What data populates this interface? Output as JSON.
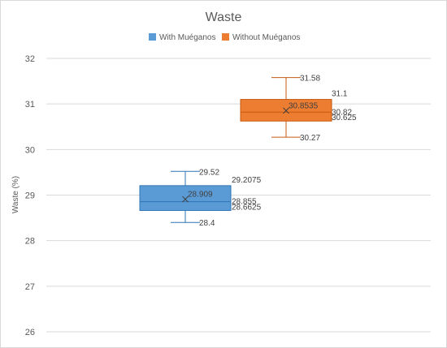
{
  "chart_data": {
    "type": "box",
    "title": "Waste",
    "ylabel": "Waste (%)",
    "xlabel": "",
    "ylim": [
      26,
      32
    ],
    "yticks": [
      26,
      27,
      28,
      29,
      30,
      31,
      32
    ],
    "grid": true,
    "legend_position": "top",
    "series": [
      {
        "name": "With Muéganos",
        "color": "#5b9bd5",
        "stroke": "#2e75b6",
        "min": 28.4,
        "q1": 28.6625,
        "median": 28.855,
        "q3": 29.2075,
        "max": 29.52,
        "mean": 28.909,
        "labels": {
          "min": "28.4",
          "q1": "28.6625",
          "median": "28.855",
          "q3": "29.2075",
          "max": "29.52",
          "mean": "28.909"
        }
      },
      {
        "name": "Without Muéganos",
        "color": "#ed7d31",
        "stroke": "#c55a11",
        "min": 30.27,
        "q1": 30.625,
        "median": 30.82,
        "q3": 31.1,
        "max": 31.58,
        "mean": 30.8535,
        "labels": {
          "min": "30.27",
          "q1": "30.625",
          "median": "30.82",
          "q3": "31.1",
          "max": "31.58",
          "mean": "30.8535"
        }
      }
    ]
  }
}
